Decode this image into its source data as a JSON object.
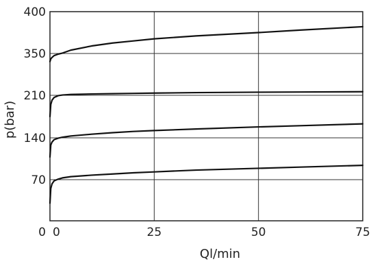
{
  "chart_data": {
    "type": "line",
    "title": "",
    "xlabel": "Ql/min",
    "ylabel": "p(bar)",
    "origin_label": "0",
    "x_ticks": [
      0,
      25,
      50,
      75
    ],
    "x_tick_labels": [
      "0",
      "25",
      "50",
      "75"
    ],
    "y_tick_labels": [
      "70",
      "140",
      "210",
      "350",
      "400"
    ],
    "xlim": [
      0,
      75
    ],
    "grid": true,
    "legend": "none",
    "series": [
      {
        "x": [
          0,
          0.2,
          0.5,
          1,
          2,
          3,
          5,
          10,
          15,
          20,
          25,
          35,
          50,
          60,
          75
        ],
        "values": [
          30,
          55,
          63,
          68,
          71,
          73,
          75,
          77.5,
          79.5,
          81.5,
          83,
          86,
          89,
          91,
          94
        ]
      },
      {
        "x": [
          0,
          0.2,
          0.5,
          1,
          2,
          3,
          5,
          10,
          15,
          20,
          25,
          35,
          50,
          60,
          75
        ],
        "values": [
          108,
          128,
          133,
          137,
          139.5,
          141,
          143,
          146,
          148.5,
          150.5,
          152,
          154.5,
          158,
          160,
          163
        ]
      },
      {
        "x": [
          0,
          0.2,
          0.5,
          1,
          2,
          3,
          5,
          10,
          15,
          20,
          25,
          35,
          50,
          60,
          75
        ],
        "values": [
          175,
          195,
          202,
          206.5,
          209.5,
          211,
          213,
          214.5,
          215.5,
          216.5,
          217.5,
          219,
          220.5,
          221,
          222
        ]
      },
      {
        "x": [
          0,
          0.2,
          0.5,
          1,
          2,
          3,
          5,
          10,
          15,
          20,
          25,
          35,
          50,
          60,
          75
        ],
        "values": [
          323,
          332,
          337,
          343,
          348,
          350.5,
          354,
          359,
          362.5,
          365,
          367.5,
          371,
          375,
          378,
          382
        ]
      }
    ]
  }
}
